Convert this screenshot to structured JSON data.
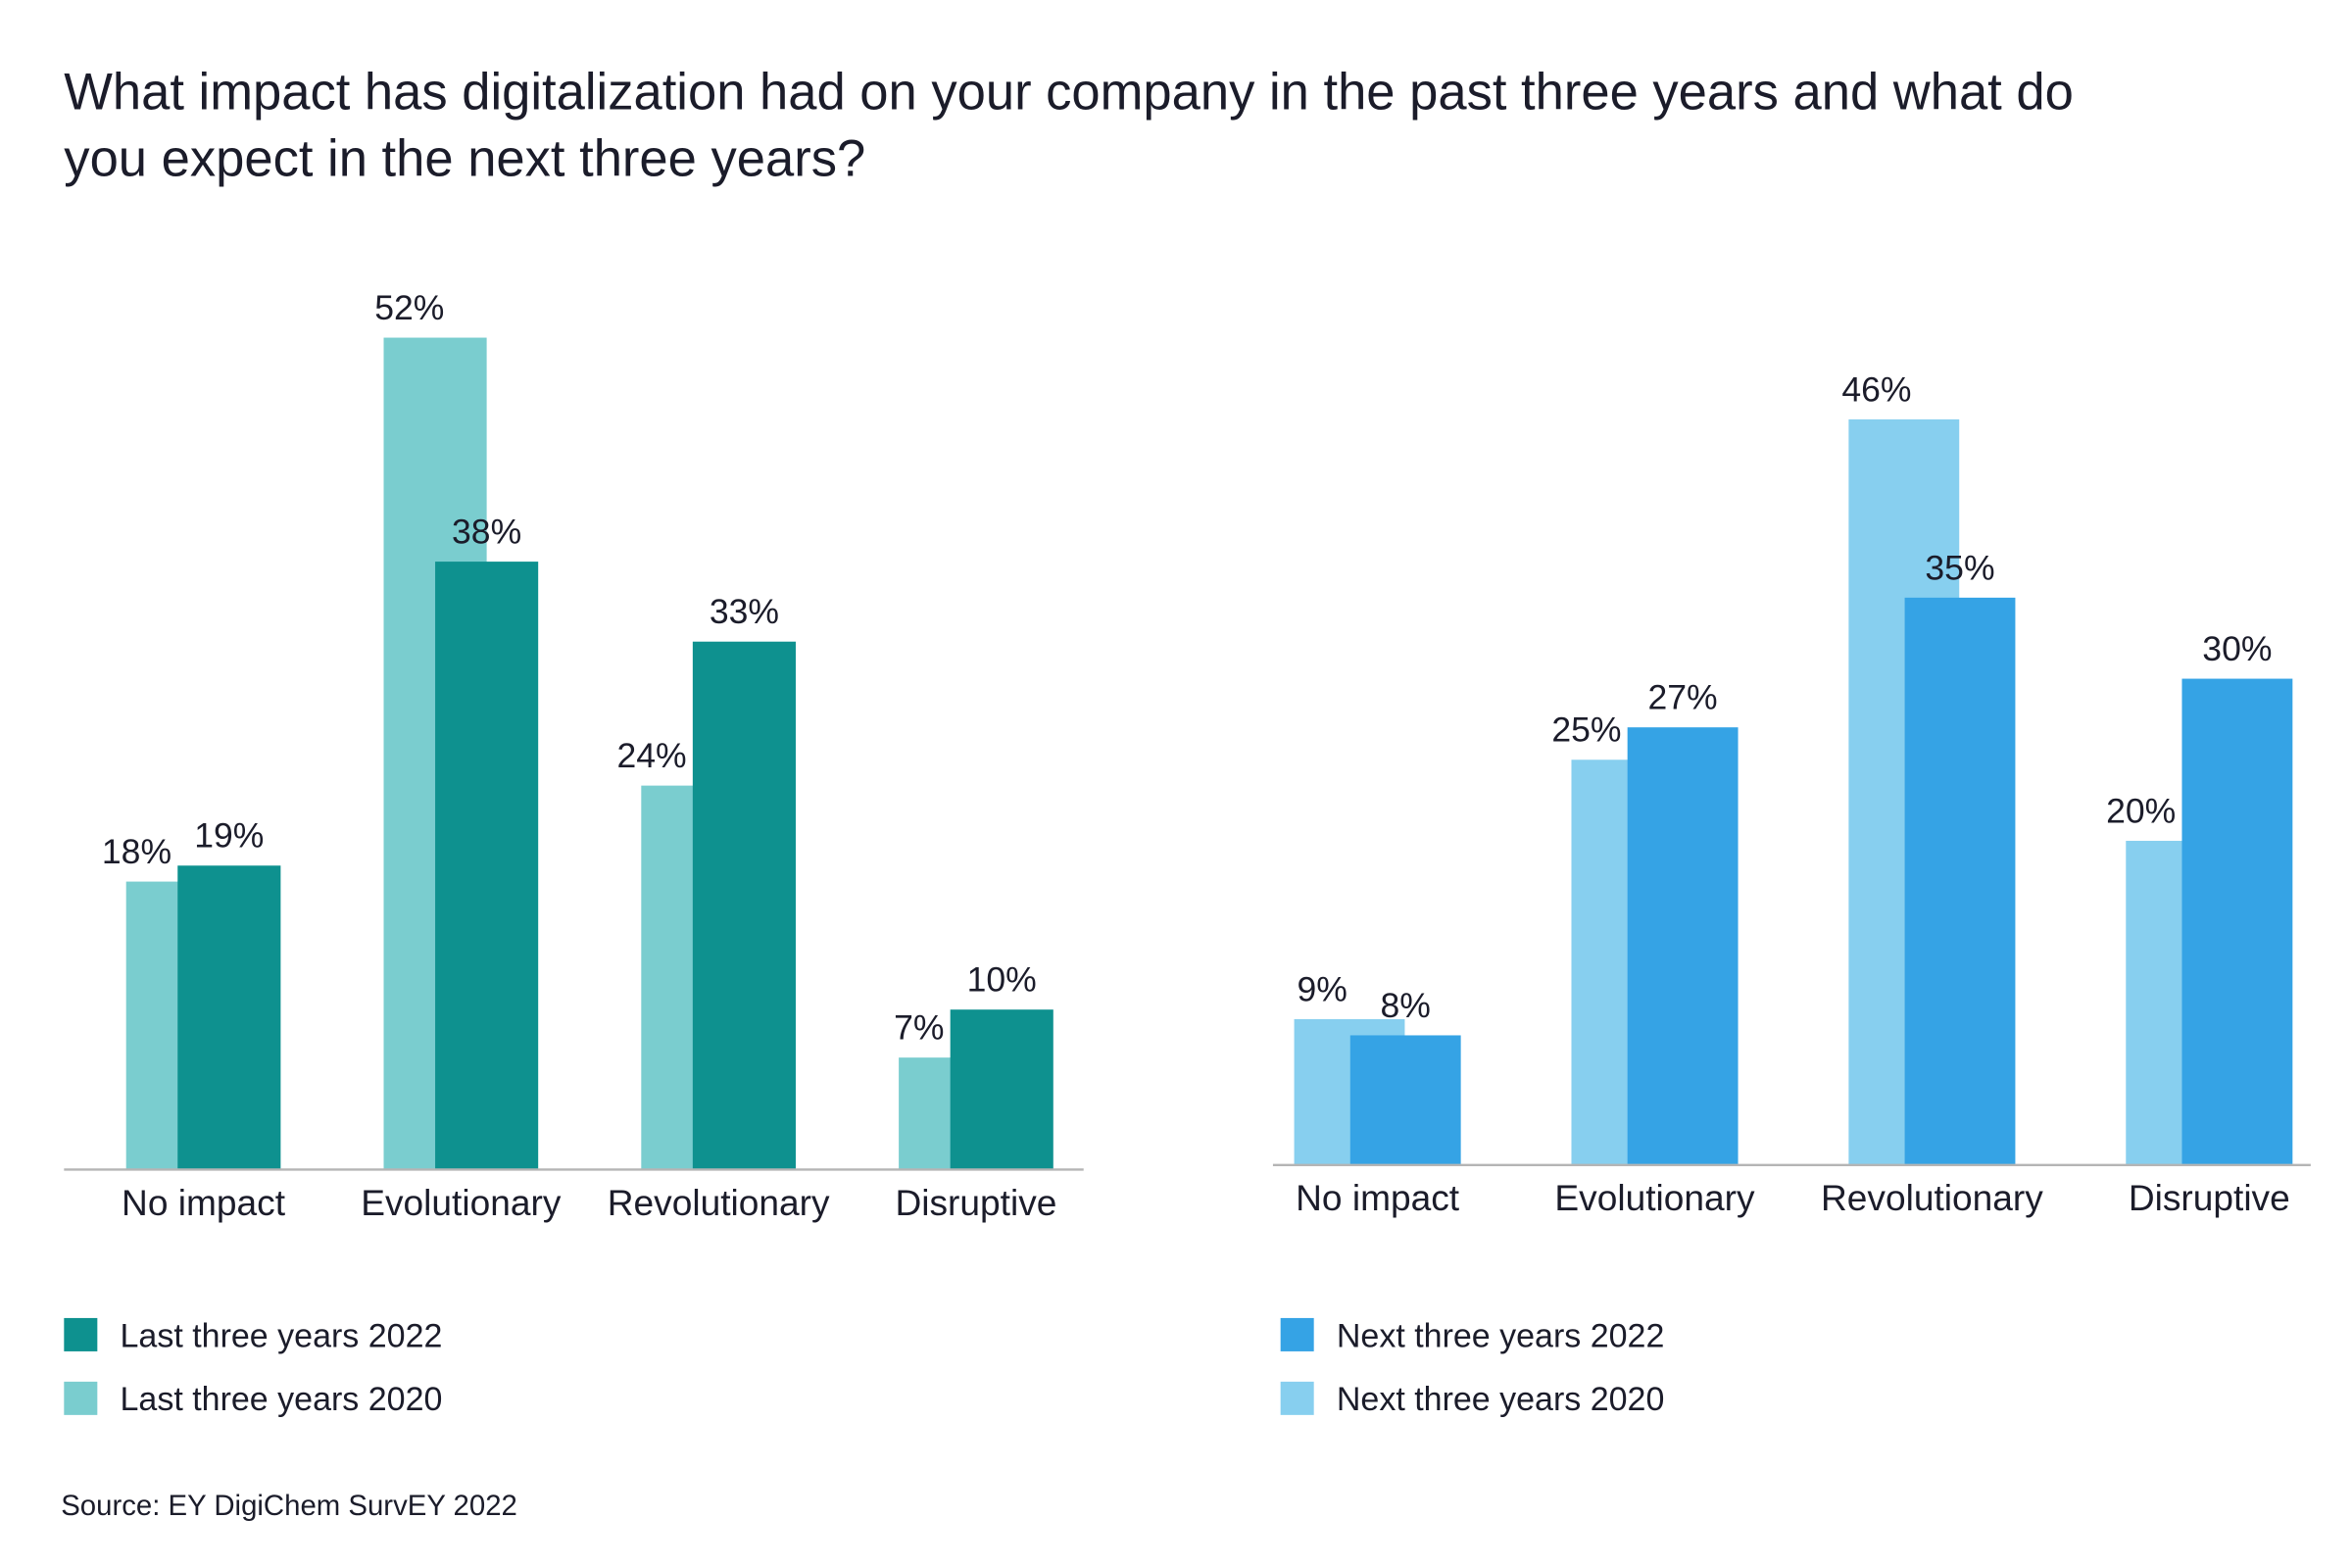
{
  "title_line1": "What impact has digitalization had on your company in the past three years and what do",
  "title_line2": "you expect in the next three years?",
  "source": "Source: EY DigiChem SurvEY 2022",
  "chart_data": [
    {
      "type": "bar",
      "categories": [
        "No impact",
        "Evolutionary",
        "Revolutionary",
        "Disruptive"
      ],
      "series": [
        {
          "name": "Last three years 2020",
          "values": [
            18,
            52,
            24,
            7
          ],
          "color": "#7acdcf",
          "labels": [
            "18%",
            "52%",
            "24%",
            "7%"
          ]
        },
        {
          "name": "Last three years 2022",
          "values": [
            19,
            38,
            33,
            10
          ],
          "color": "#0e918f",
          "labels": [
            "19%",
            "38%",
            "33%",
            "10%"
          ]
        }
      ],
      "legend": [
        "Last three years 2022",
        "Last three years 2020"
      ],
      "legend_placement": "bottom",
      "grid": false,
      "ylim": [
        0,
        55
      ]
    },
    {
      "type": "bar",
      "categories": [
        "No impact",
        "Evolutionary",
        "Revolutionary",
        "Disruptive"
      ],
      "series": [
        {
          "name": "Next three years 2020",
          "values": [
            9,
            25,
            46,
            20
          ],
          "color": "#87cfef",
          "labels": [
            "9%",
            "25%",
            "46%",
            "20%"
          ]
        },
        {
          "name": "Next three years 2022",
          "values": [
            8,
            27,
            35,
            30
          ],
          "color": "#35a3e5",
          "labels": [
            "8%",
            "27%",
            "35%",
            "30%"
          ]
        }
      ],
      "legend": [
        "Next three years 2022",
        "Next three years 2020"
      ],
      "legend_placement": "bottom",
      "grid": false,
      "ylim": [
        0,
        55
      ]
    }
  ]
}
